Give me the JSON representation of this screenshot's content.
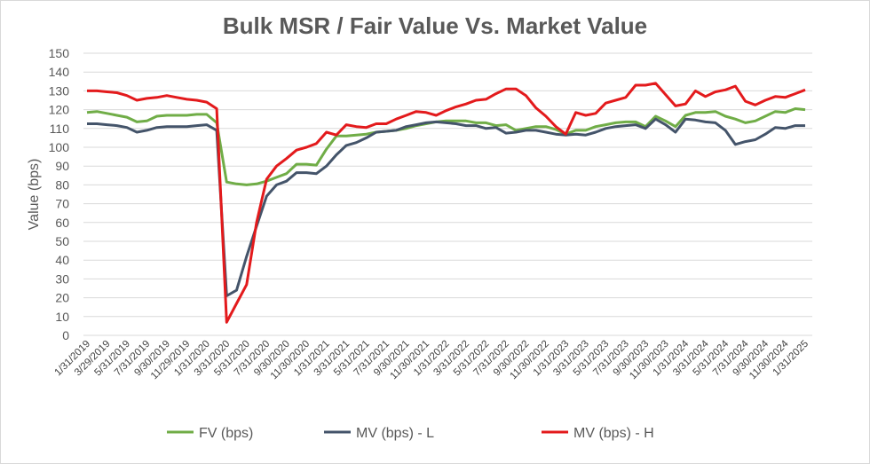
{
  "chart_data": {
    "type": "line",
    "title": "Bulk MSR / Fair Value Vs. Market Value",
    "xlabel": "",
    "ylabel": "Value (bps)",
    "ylim": [
      0,
      150
    ],
    "yticks": [
      0,
      10,
      20,
      30,
      40,
      50,
      60,
      70,
      80,
      90,
      100,
      110,
      120,
      130,
      140,
      150
    ],
    "grid": "horizontal",
    "legend": "bottom",
    "x": [
      "2019-01",
      "2019-02",
      "2019-03",
      "2019-04",
      "2019-05",
      "2019-06",
      "2019-07",
      "2019-08",
      "2019-09",
      "2019-10",
      "2019-11",
      "2019-12",
      "2020-01",
      "2020-02",
      "2020-03",
      "2020-04",
      "2020-05",
      "2020-06",
      "2020-07",
      "2020-08",
      "2020-09",
      "2020-10",
      "2020-11",
      "2020-12",
      "2021-01",
      "2021-02",
      "2021-03",
      "2021-04",
      "2021-05",
      "2021-06",
      "2021-07",
      "2021-08",
      "2021-09",
      "2021-10",
      "2021-11",
      "2021-12",
      "2022-01",
      "2022-02",
      "2022-03",
      "2022-04",
      "2022-05",
      "2022-06",
      "2022-07",
      "2022-08",
      "2022-09",
      "2022-10",
      "2022-11",
      "2022-12",
      "2023-01",
      "2023-02",
      "2023-03",
      "2023-04",
      "2023-05",
      "2023-06",
      "2023-07",
      "2023-08",
      "2023-09",
      "2023-10",
      "2023-11",
      "2023-12",
      "2024-01",
      "2024-02",
      "2024-03",
      "2024-04",
      "2024-05",
      "2024-06",
      "2024-07",
      "2024-08",
      "2024-09",
      "2024-10",
      "2024-11",
      "2024-12",
      "2025-01"
    ],
    "xtick_labels": [
      "1/31/2019",
      "3/29/2019",
      "5/31/2019",
      "7/31/2019",
      "9/30/2019",
      "11/29/2019",
      "1/31/2020",
      "3/31/2020",
      "5/31/2020",
      "7/31/2020",
      "9/30/2020",
      "11/30/2020",
      "1/31/2021",
      "3/31/2021",
      "5/31/2021",
      "7/31/2021",
      "9/30/2021",
      "11/30/2021",
      "1/31/2022",
      "3/31/2022",
      "5/31/2022",
      "7/31/2022",
      "9/30/2022",
      "11/30/2022",
      "1/31/2023",
      "3/31/2023",
      "5/31/2023",
      "7/31/2023",
      "9/30/2023",
      "11/30/2023",
      "1/31/2024",
      "3/31/2024",
      "5/31/2024",
      "7/31/2024",
      "9/30/2024",
      "11/30/2024",
      "1/31/2025"
    ],
    "series": [
      {
        "name": "FV (bps)",
        "color": "#70ad47",
        "values": [
          118.5,
          119,
          118,
          117,
          116,
          113.5,
          114,
          116.5,
          117,
          117,
          117,
          117.5,
          117.5,
          113,
          81.5,
          80.5,
          80,
          80.5,
          82,
          84,
          86,
          91,
          91,
          90.5,
          99,
          106,
          106,
          106.5,
          107,
          108,
          108.5,
          109,
          110,
          111.5,
          112.5,
          113.5,
          114,
          114,
          114,
          113,
          113,
          111.5,
          112,
          109,
          110,
          111,
          111,
          109.5,
          107,
          109,
          109,
          111,
          112,
          113,
          113.5,
          113.5,
          111,
          116.5,
          114,
          111,
          117,
          118.5,
          118.5,
          119,
          116.5,
          115,
          113,
          114,
          116.5,
          119,
          118.5,
          120.5,
          120
        ]
      },
      {
        "name": "MV (bps) - L",
        "color": "#44546a",
        "values": [
          112.5,
          112.5,
          112,
          111.5,
          110.5,
          108,
          109,
          110.5,
          111,
          111,
          111,
          111.5,
          112,
          109,
          21,
          24,
          42,
          58,
          74,
          80,
          82,
          86.5,
          86.5,
          86,
          90,
          96,
          101,
          102.5,
          105,
          108,
          108.5,
          109,
          111,
          112,
          113,
          113.5,
          113,
          112.5,
          111.5,
          111.5,
          110,
          110.5,
          107.5,
          108,
          109,
          109,
          108,
          107,
          106.5,
          107,
          106.5,
          108,
          110,
          111,
          111.5,
          112,
          110,
          115,
          112,
          108,
          115,
          114.5,
          113.5,
          113,
          109,
          101.5,
          103,
          104,
          107,
          110.5,
          110,
          111.5,
          111.5
        ]
      },
      {
        "name": "MV (bps) - H",
        "color": "#e31a1c",
        "values": [
          130,
          130,
          129.5,
          129,
          127.5,
          125,
          126,
          126.5,
          127.5,
          126.5,
          125.5,
          125,
          124,
          120.5,
          7,
          17,
          27,
          60,
          83,
          90,
          94,
          98.5,
          100,
          102,
          108,
          106.5,
          112,
          111,
          110.5,
          112.5,
          112.5,
          115,
          117,
          119,
          118.5,
          117,
          119.5,
          121.5,
          123,
          125,
          125.5,
          128.5,
          131,
          131,
          127.5,
          121,
          116.5,
          111,
          107,
          118.5,
          117,
          118,
          123.5,
          125,
          126.5,
          133,
          133,
          134,
          128,
          122,
          123,
          130,
          127,
          129.5,
          130.5,
          132.5,
          124.5,
          122.5,
          125,
          127,
          126.5,
          128.5,
          130.5
        ]
      }
    ]
  }
}
